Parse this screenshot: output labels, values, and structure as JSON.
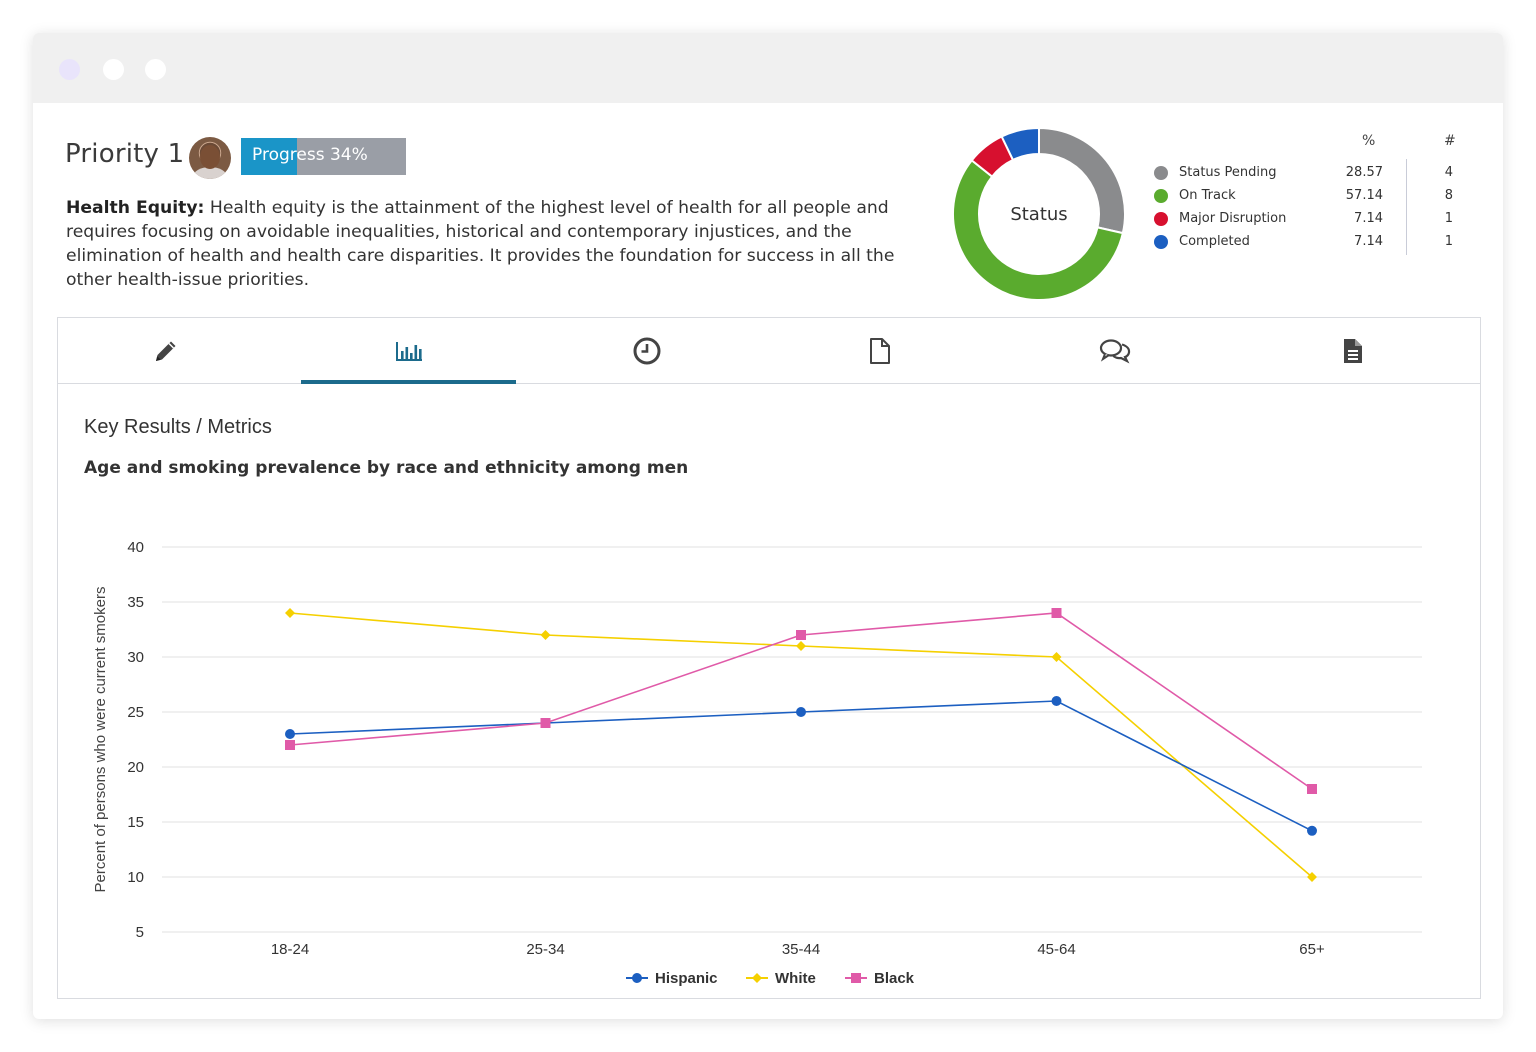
{
  "window": {
    "controls": [
      "close",
      "minimize",
      "maximize"
    ]
  },
  "header": {
    "title": "Priority 1",
    "avatar_alt": "user avatar",
    "progress": {
      "label": "Progress 34%",
      "value": 34
    }
  },
  "description": {
    "term": "Health Equity:",
    "text": "Health equity is the attainment of the highest level of health for all people and requires focusing on avoidable inequalities, historical and contemporary injustices, and the elimination of health and health care disparities. It provides the foundation for success in all the other health-issue priorities."
  },
  "status": {
    "center_label": "Status",
    "col_pct": "%",
    "col_count": "#",
    "items": [
      {
        "name": "Status Pending",
        "pct": "28.57",
        "count": "4",
        "color": "#8a8b8d"
      },
      {
        "name": "On Track",
        "pct": "57.14",
        "count": "8",
        "color": "#5aab2e"
      },
      {
        "name": "Major Disruption",
        "pct": "7.14",
        "count": "1",
        "color": "#d7102f"
      },
      {
        "name": "Completed",
        "pct": "7.14",
        "count": "1",
        "color": "#1c5fc1"
      }
    ]
  },
  "tabs": [
    {
      "icon": "pencil-icon",
      "active": false
    },
    {
      "icon": "bar-chart-icon",
      "active": true
    },
    {
      "icon": "clock-icon",
      "active": false
    },
    {
      "icon": "document-icon",
      "active": false
    },
    {
      "icon": "comments-icon",
      "active": false
    },
    {
      "icon": "file-text-icon",
      "active": false
    }
  ],
  "metrics": {
    "section_title": "Key Results / Metrics"
  },
  "chart_data": {
    "type": "line",
    "title": "Age and smoking prevalence by race and ethnicity among men",
    "xlabel": "",
    "ylabel": "Percent of persons who were current smokers",
    "ylim": [
      5,
      40
    ],
    "yticks": [
      5,
      10,
      15,
      20,
      25,
      30,
      35,
      40
    ],
    "grid": true,
    "legend_position": "bottom",
    "categories": [
      "18-24",
      "25-34",
      "35-44",
      "45-64",
      "65+"
    ],
    "series": [
      {
        "name": "Hispanic",
        "values": [
          23,
          24,
          25,
          26,
          14.2
        ],
        "color": "#1c5fc1",
        "marker": "circle"
      },
      {
        "name": "White",
        "values": [
          34,
          32,
          31,
          30,
          10
        ],
        "color": "#f5d000",
        "marker": "diamond"
      },
      {
        "name": "Black",
        "values": [
          22,
          24,
          32,
          34,
          18
        ],
        "color": "#e05aa8",
        "marker": "square"
      }
    ]
  }
}
